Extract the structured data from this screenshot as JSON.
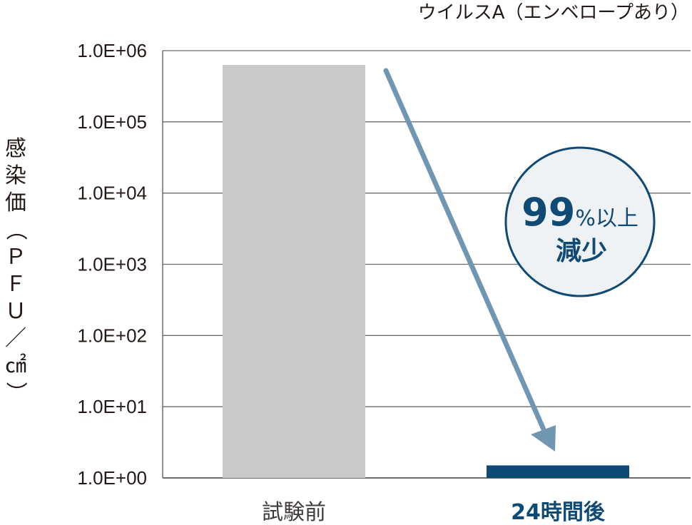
{
  "chart_data": {
    "type": "bar",
    "subtitle": "ウイルスA（エンベロープあり）",
    "ylabel": "感染価（ＰＦＵ／㎠）",
    "yscale": "log",
    "ylim": [
      1,
      1000000
    ],
    "yticks": [
      "1.0E+00",
      "1.0E+01",
      "1.0E+02",
      "1.0E+03",
      "1.0E+04",
      "1.0E+05",
      "1.0E+06"
    ],
    "grid": true,
    "categories": [
      "試験前",
      "24時間後"
    ],
    "values": [
      630000,
      1.5
    ],
    "colors": [
      "#c8c9ca",
      "#0e4a73"
    ],
    "label_colors": [
      "#3e3a39",
      "#0e4a73"
    ],
    "annotation": {
      "number": "99",
      "suffix": "%以上",
      "line2": "減少",
      "circle_fill": "#eef2f5",
      "circle_stroke": "#0e4a73",
      "arrow_color": "#7096b2"
    }
  }
}
